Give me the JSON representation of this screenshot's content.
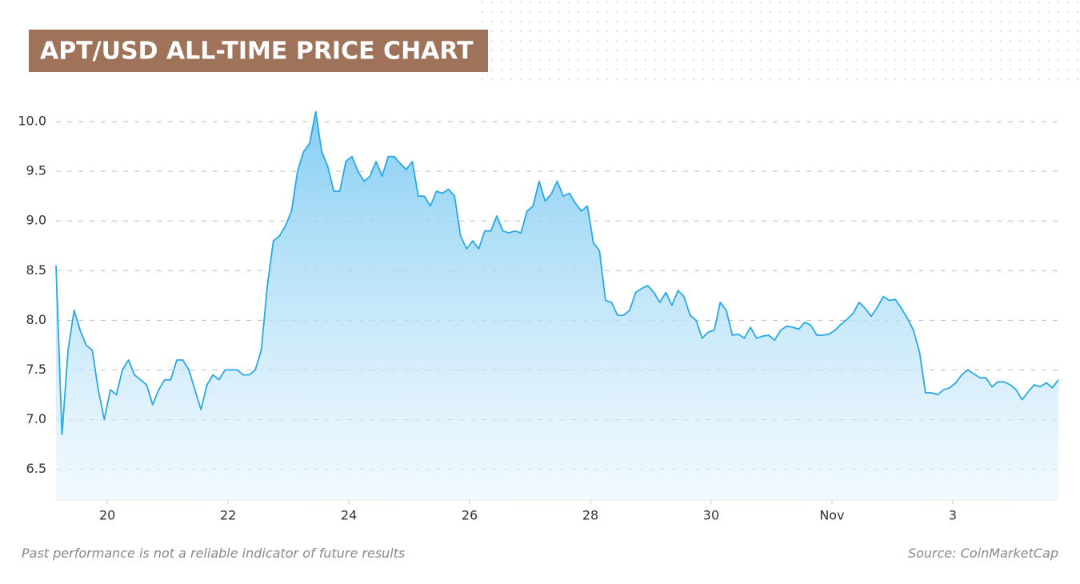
{
  "chart_data": {
    "type": "area",
    "title": "APT/USD ALL-TIME PRICE CHART",
    "footnote": "Past performance is not a reliable indicator of future results",
    "source": "Source: CoinMarketCap",
    "color": "#29a8e6",
    "grid": true,
    "xlim": [
      19.15,
      35.75
    ],
    "ylim": [
      6.19,
      10.42
    ],
    "xticks": [
      20,
      22,
      24,
      26,
      28,
      30,
      {
        "value": 32,
        "label": "Nov"
      },
      {
        "value": 34,
        "label": "3"
      }
    ],
    "yticks": [
      6.5,
      {
        "value": 7,
        "label": "7.0"
      },
      7.5,
      {
        "value": 8,
        "label": "8.0"
      },
      8.5,
      {
        "value": 9,
        "label": "9.0"
      },
      9.5,
      {
        "value": 10,
        "label": "10.0"
      }
    ],
    "x": [
      19.15,
      19.25,
      19.35,
      19.45,
      19.55,
      19.65,
      19.75,
      19.85,
      19.95,
      20.05,
      20.15,
      20.25,
      20.35,
      20.45,
      20.55,
      20.65,
      20.75,
      20.85,
      20.95,
      21.05,
      21.15,
      21.25,
      21.35,
      21.45,
      21.55,
      21.65,
      21.75,
      21.85,
      21.95,
      22.05,
      22.15,
      22.25,
      22.35,
      22.45,
      22.55,
      22.65,
      22.75,
      22.85,
      22.95,
      23.05,
      23.15,
      23.25,
      23.35,
      23.45,
      23.55,
      23.65,
      23.75,
      23.85,
      23.95,
      24.05,
      24.15,
      24.25,
      24.35,
      24.45,
      24.55,
      24.65,
      24.75,
      24.85,
      24.95,
      25.05,
      25.15,
      25.25,
      25.35,
      25.45,
      25.55,
      25.65,
      25.75,
      25.85,
      25.95,
      26.05,
      26.15,
      26.25,
      26.35,
      26.45,
      26.55,
      26.65,
      26.75,
      26.85,
      26.95,
      27.05,
      27.15,
      27.25,
      27.35,
      27.45,
      27.55,
      27.65,
      27.75,
      27.85,
      27.95,
      28.05,
      28.15,
      28.25,
      28.35,
      28.45,
      28.55,
      28.65,
      28.75,
      28.85,
      28.95,
      29.05,
      29.15,
      29.25,
      29.35,
      29.45,
      29.55,
      29.65,
      29.75,
      29.85,
      29.95,
      30.05,
      30.15,
      30.25,
      30.35,
      30.45,
      30.55,
      30.65,
      30.75,
      30.85,
      30.95,
      31.05,
      31.15,
      31.25,
      31.35,
      31.45,
      31.55,
      31.65,
      31.75,
      31.85,
      31.95,
      32.05,
      32.15,
      32.25,
      32.35,
      32.45,
      32.55,
      32.65,
      32.75,
      32.85,
      32.95,
      33.05,
      33.15,
      33.25,
      33.35,
      33.45,
      33.55,
      33.65,
      33.75,
      33.85,
      33.95,
      34.05,
      34.15,
      34.25,
      34.35,
      34.45,
      34.55,
      34.65,
      34.75,
      34.85,
      34.95,
      35.05,
      35.15,
      35.25,
      35.35,
      35.45,
      35.55,
      35.65,
      35.75
    ],
    "values": [
      8.55,
      6.85,
      7.7,
      8.1,
      7.9,
      7.75,
      7.7,
      7.3,
      7.0,
      7.3,
      7.25,
      7.5,
      7.6,
      7.45,
      7.4,
      7.35,
      7.15,
      7.3,
      7.4,
      7.4,
      7.6,
      7.6,
      7.5,
      7.3,
      7.1,
      7.35,
      7.45,
      7.4,
      7.5,
      7.5,
      7.5,
      7.45,
      7.45,
      7.5,
      7.7,
      8.35,
      8.8,
      8.85,
      8.95,
      9.1,
      9.5,
      9.7,
      9.78,
      10.1,
      9.7,
      9.55,
      9.3,
      9.3,
      9.6,
      9.65,
      9.5,
      9.4,
      9.45,
      9.6,
      9.45,
      9.65,
      9.65,
      9.58,
      9.52,
      9.6,
      9.25,
      9.25,
      9.15,
      9.3,
      9.28,
      9.32,
      9.25,
      8.85,
      8.72,
      8.8,
      8.72,
      8.9,
      8.9,
      9.05,
      8.9,
      8.88,
      8.9,
      8.88,
      9.1,
      9.15,
      9.4,
      9.2,
      9.27,
      9.4,
      9.25,
      9.28,
      9.18,
      9.1,
      9.15,
      8.78,
      8.7,
      8.2,
      8.18,
      8.05,
      8.05,
      8.1,
      8.28,
      8.32,
      8.35,
      8.28,
      8.18,
      8.28,
      8.15,
      8.3,
      8.24,
      8.05,
      8.0,
      7.82,
      7.88,
      7.9,
      8.18,
      8.1,
      7.85,
      7.86,
      7.82,
      7.93,
      7.82,
      7.84,
      7.85,
      7.8,
      7.9,
      7.94,
      7.93,
      7.91,
      7.98,
      7.95,
      7.85,
      7.85,
      7.86,
      7.9,
      7.96,
      8.01,
      8.07,
      8.18,
      8.12,
      8.04,
      8.13,
      8.24,
      8.2,
      8.21,
      8.12,
      8.02,
      7.9,
      7.68,
      7.27,
      7.27,
      7.25,
      7.3,
      7.32,
      7.37,
      7.45,
      7.5,
      7.46,
      7.42,
      7.42,
      7.33,
      7.38,
      7.38,
      7.35,
      7.3,
      7.2,
      7.28,
      7.35,
      7.33,
      7.37,
      7.32,
      7.4
    ]
  }
}
